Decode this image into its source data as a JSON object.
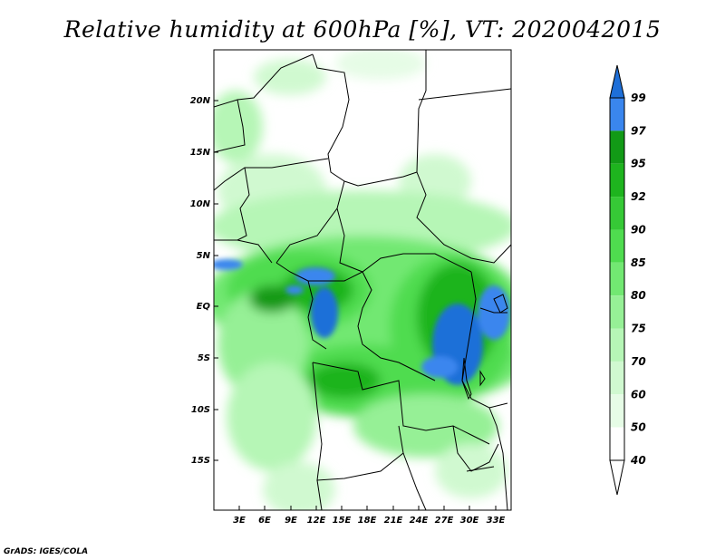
{
  "title": "Relative humidity at 600hPa [%], VT: 2020042015",
  "credit": "GrADS: IGES/COLA",
  "map": {
    "lat_labels": [
      "20N",
      "15N",
      "10N",
      "5N",
      "EQ",
      "5S",
      "10S",
      "15S"
    ],
    "lon_labels": [
      "3E",
      "6E",
      "9E",
      "12E",
      "15E",
      "18E",
      "21E",
      "24E",
      "27E",
      "30E",
      "33E"
    ]
  },
  "colorbar": {
    "levels": [
      "99",
      "97",
      "95",
      "92",
      "90",
      "85",
      "80",
      "75",
      "70",
      "60",
      "50",
      "40"
    ],
    "colors": [
      "#1e6fd8",
      "#3a86ee",
      "#129a16",
      "#1eb41e",
      "#36c936",
      "#4fdc4f",
      "#72e872",
      "#96f096",
      "#b6f6b6",
      "#d0f9d0",
      "#e6fce6",
      "#ffffff"
    ]
  }
}
